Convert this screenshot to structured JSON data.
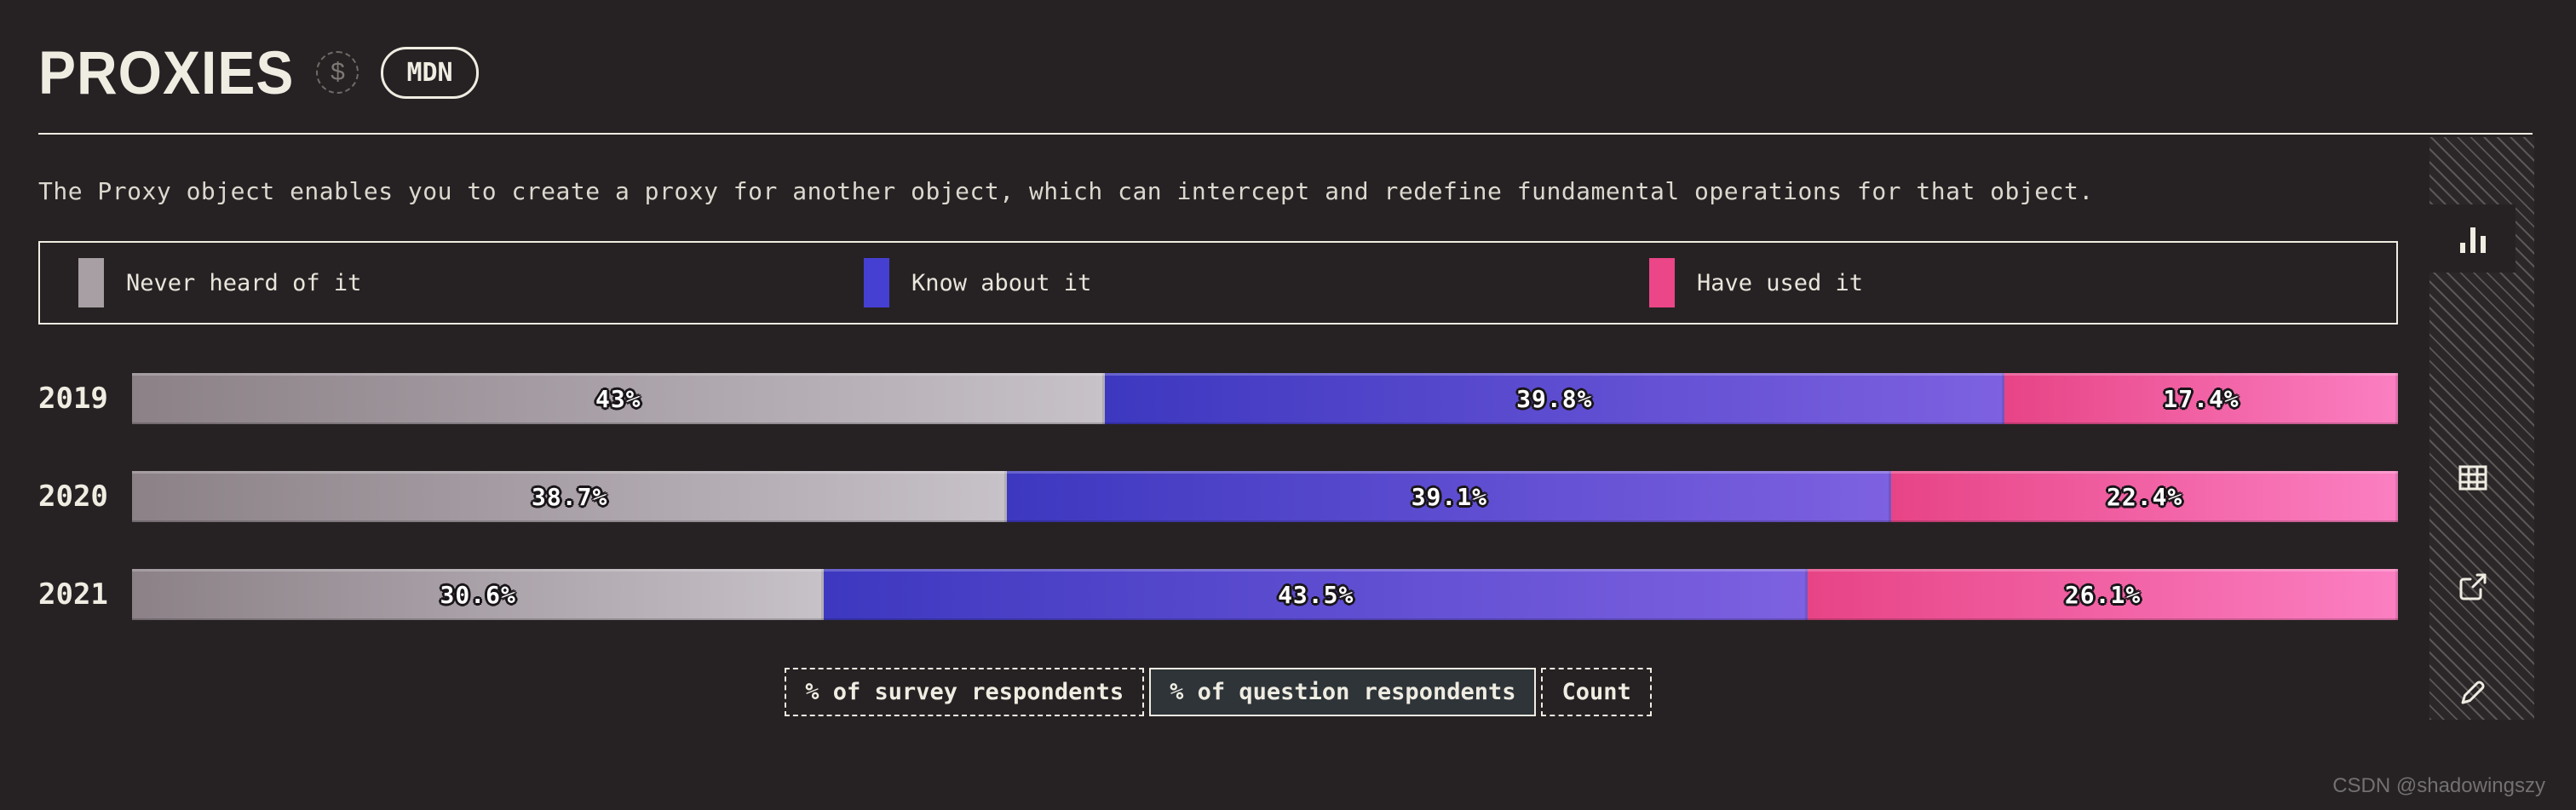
{
  "header": {
    "title": "PROXIES",
    "dollar_icon": "$",
    "mdn_badge": "MDN"
  },
  "description": "The Proxy object enables you to create a proxy for another object, which can intercept and redefine fundamental operations for that object.",
  "legend": {
    "items": [
      {
        "label": "Never heard of it",
        "color": "#a89fa5"
      },
      {
        "label": "Know about it",
        "color": "#4540d2"
      },
      {
        "label": "Have used it",
        "color": "#eb4687"
      }
    ]
  },
  "chart_data": {
    "type": "bar",
    "stacked": true,
    "orientation": "horizontal",
    "unit": "%",
    "title": "Proxies — awareness/usage by year",
    "categories": [
      "2019",
      "2020",
      "2021"
    ],
    "series": [
      {
        "name": "Never heard of it",
        "values": [
          43,
          38.7,
          30.6
        ],
        "gradient": [
          "#8b8187",
          "#c7c2c8"
        ]
      },
      {
        "name": "Know about it",
        "values": [
          39.8,
          39.1,
          43.5
        ],
        "gradient": [
          "#3d38c0",
          "#7d61e0"
        ]
      },
      {
        "name": "Have used it",
        "values": [
          17.4,
          22.4,
          26.1
        ],
        "gradient": [
          "#e74486",
          "#fb7fc2"
        ]
      }
    ],
    "xlim": [
      0,
      100
    ],
    "value_labels_on_bars": true,
    "legend_position": "top"
  },
  "units_switcher": {
    "options": [
      "% of survey respondents",
      "% of question respondents",
      "Count"
    ],
    "active": "% of question respondents",
    "active_index": 1
  },
  "sidebar": {
    "icons": [
      "bar-chart",
      "table",
      "external-link",
      "edit"
    ],
    "active": "bar-chart"
  },
  "watermark": "CSDN @shadowingszy",
  "colors": {
    "background": "#262223",
    "text": "#e9e5dc",
    "rule": "#efece2",
    "active_button_bg": "#2e3438"
  }
}
